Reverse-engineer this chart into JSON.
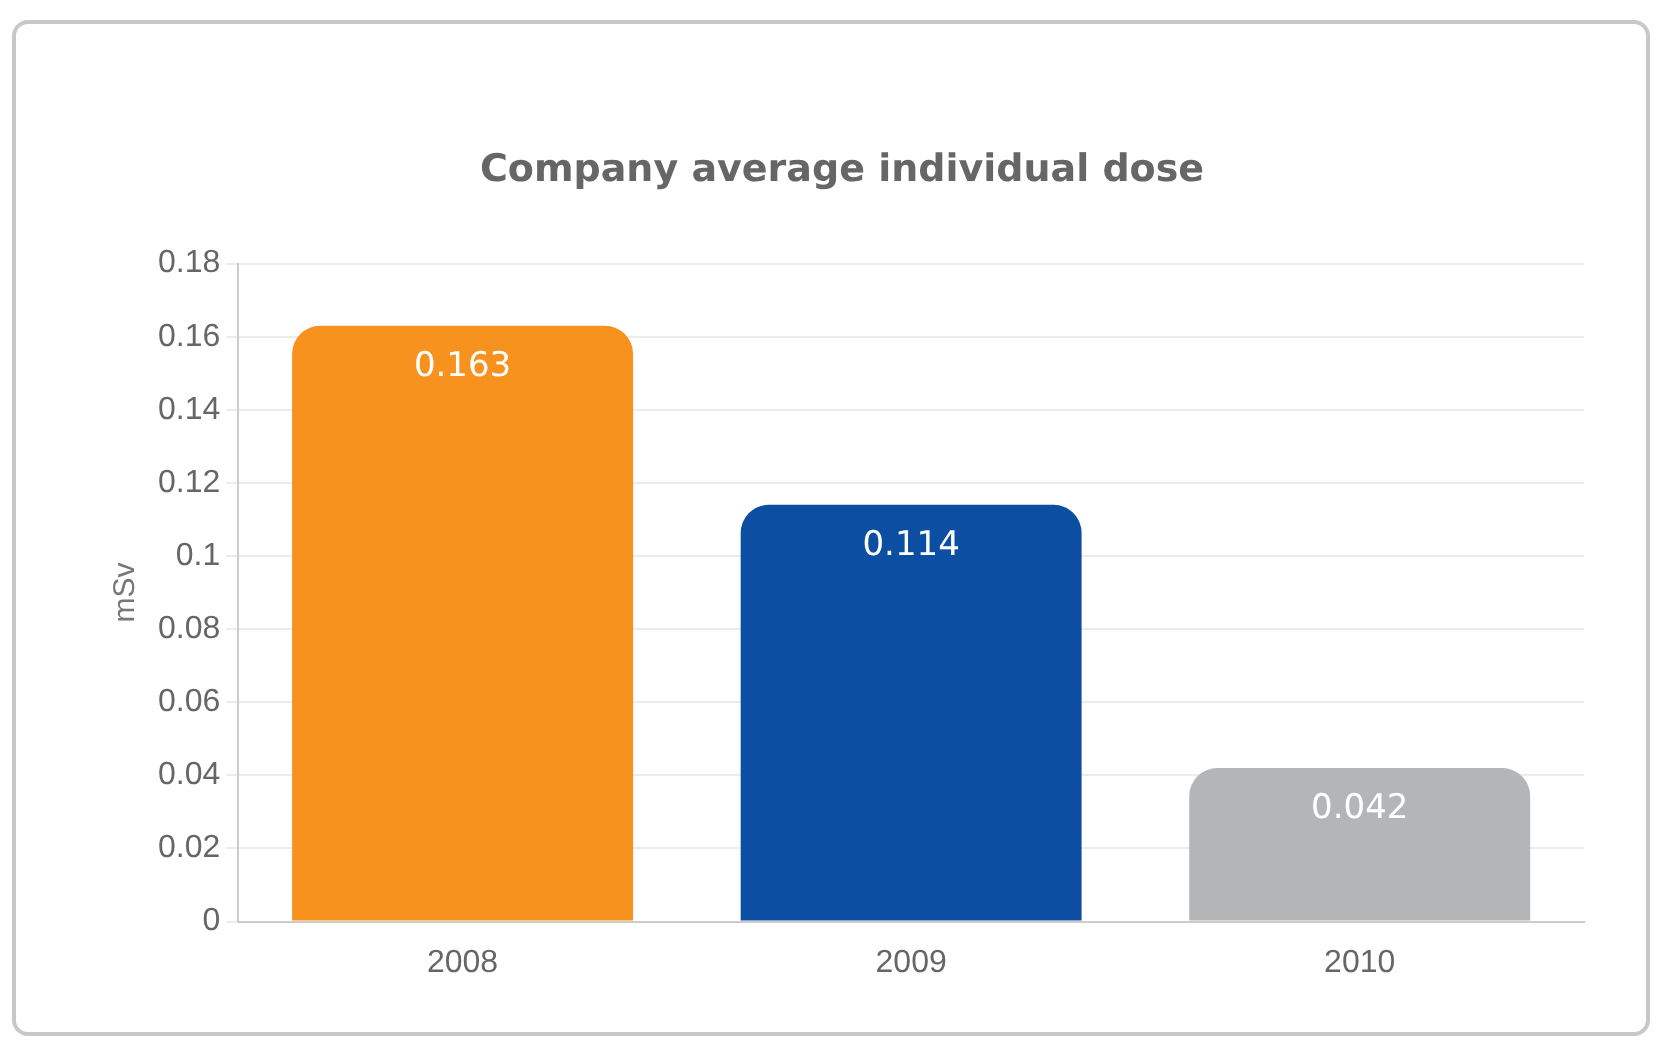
{
  "chart_data": {
    "type": "bar",
    "title": "Company average individual dose",
    "ylabel": "mSv",
    "categories": [
      "2008",
      "2009",
      "2010"
    ],
    "values": [
      0.163,
      0.114,
      0.042
    ],
    "colors": [
      "#f7921e",
      "#0b4ea2",
      "#b3b5b7"
    ],
    "ylim": [
      0,
      0.18
    ],
    "yticks": [
      0,
      0.02,
      0.04,
      0.06,
      0.08,
      0.1,
      0.12,
      0.14,
      0.16,
      0.18
    ],
    "grid": "y",
    "data_labels": true
  }
}
